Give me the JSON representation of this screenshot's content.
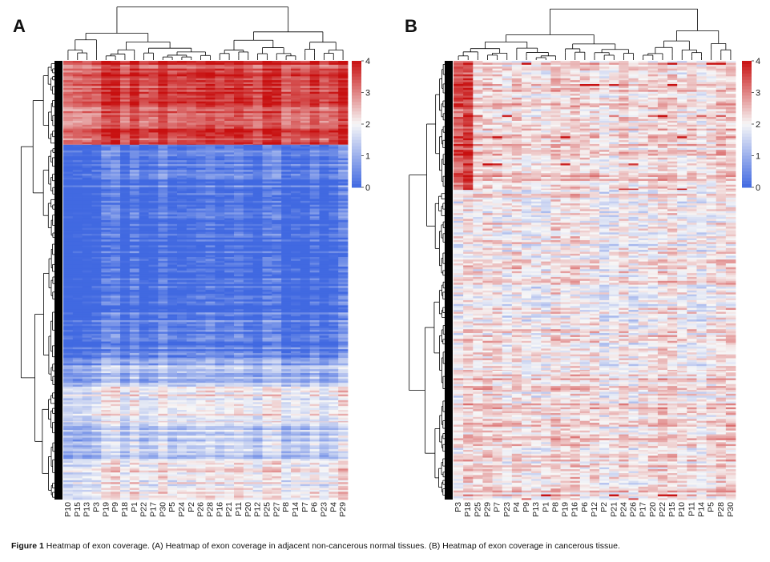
{
  "figure": {
    "caption": {
      "label": "Figure 1",
      "text": "Heatmap of exon coverage. (A) Heatmap of exon coverage in adjacent non-cancerous normal tissues. (B) Heatmap of exon coverage in cancerous tissue."
    }
  },
  "colors": {
    "low": "#4169e1",
    "mid": "#f7f7f7",
    "high": "#c81010",
    "tree": "#000000"
  },
  "chart_data": [
    {
      "type": "heatmap",
      "panel": "A",
      "title": "",
      "columns": [
        "P10",
        "P15",
        "P13",
        "P3",
        "P19",
        "P9",
        "P18",
        "P1",
        "P22",
        "P17",
        "P30",
        "P5",
        "P24",
        "P2",
        "P26",
        "P28",
        "P16",
        "P21",
        "P11",
        "P20",
        "P12",
        "P25",
        "P27",
        "P8",
        "P14",
        "P7",
        "P6",
        "P23",
        "P4",
        "P29"
      ],
      "color_scale": {
        "min": 0,
        "max": 4,
        "ticks": [
          0,
          1,
          2,
          3,
          4
        ]
      },
      "row_blocks": [
        {
          "rows": 130,
          "mean": 3.55
        },
        {
          "rows": 90,
          "mean": 0.35
        },
        {
          "rows": 170,
          "mean": 0.05
        },
        {
          "rows": 70,
          "mean": 0.4
        },
        {
          "rows": 45,
          "mean": 1.2
        },
        {
          "rows": 55,
          "mean": 2.0
        },
        {
          "rows": 60,
          "mean": 1.5
        },
        {
          "rows": 60,
          "mean": 2.1
        }
      ]
    },
    {
      "type": "heatmap",
      "panel": "B",
      "title": "",
      "columns": [
        "P3",
        "P18",
        "P25",
        "P29",
        "P7",
        "P23",
        "P4",
        "P9",
        "P13",
        "P1",
        "P8",
        "P19",
        "P16",
        "P6",
        "P12",
        "P2",
        "P21",
        "P24",
        "P26",
        "P17",
        "P20",
        "P22",
        "P15",
        "P10",
        "P11",
        "P14",
        "P5",
        "P28",
        "P30"
      ],
      "color_scale": {
        "min": 0,
        "max": 4,
        "ticks": [
          0,
          1,
          2,
          3,
          4
        ]
      },
      "row_blocks": [
        {
          "rows": 200,
          "mean": 2.3
        },
        {
          "rows": 30,
          "mean": 2.1
        },
        {
          "rows": 250,
          "mean": 2.05
        },
        {
          "rows": 200,
          "mean": 2.2
        }
      ]
    }
  ]
}
